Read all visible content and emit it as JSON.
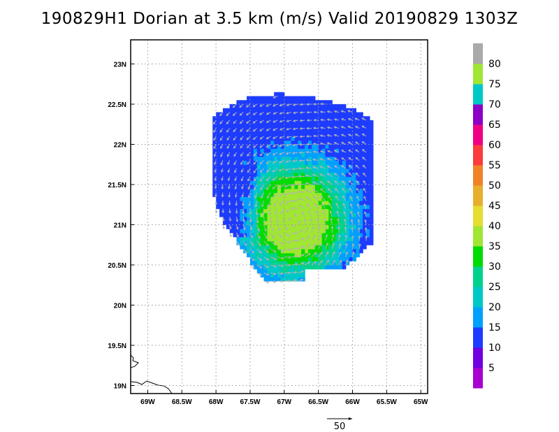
{
  "chart_data": {
    "type": "heatmap",
    "title": "190829H1 Dorian at 3.5 km (m/s) Valid 20190829 1303Z",
    "x_ticks": [
      "69W",
      "68.5W",
      "68W",
      "67.5W",
      "67W",
      "66.5W",
      "66W",
      "65.5W",
      "65W"
    ],
    "y_ticks": [
      "19N",
      "19.5N",
      "20N",
      "20.5N",
      "21N",
      "21.5N",
      "22N",
      "22.5N",
      "23N"
    ],
    "xlim": [
      -69.25,
      -64.9
    ],
    "ylim": [
      18.9,
      23.3
    ],
    "grid": true,
    "colorbar": {
      "ticks": [
        "5",
        "10",
        "15",
        "20",
        "25",
        "30",
        "35",
        "40",
        "45",
        "50",
        "55",
        "60",
        "65",
        "70",
        "75",
        "80"
      ],
      "colors": [
        "#a800d0",
        "#7000e0",
        "#1e3cff",
        "#00a0ff",
        "#00c8c8",
        "#00d28c",
        "#00dc00",
        "#a0e632",
        "#e6dc32",
        "#e6af2d",
        "#f08228",
        "#fa3c3c",
        "#f00082",
        "#8c00c8",
        "#00c8c8",
        "#a0e632",
        "#aaaaaa"
      ]
    },
    "storm_center": {
      "lon": -66.85,
      "lat": 21.05
    },
    "reference_vector": "50"
  }
}
